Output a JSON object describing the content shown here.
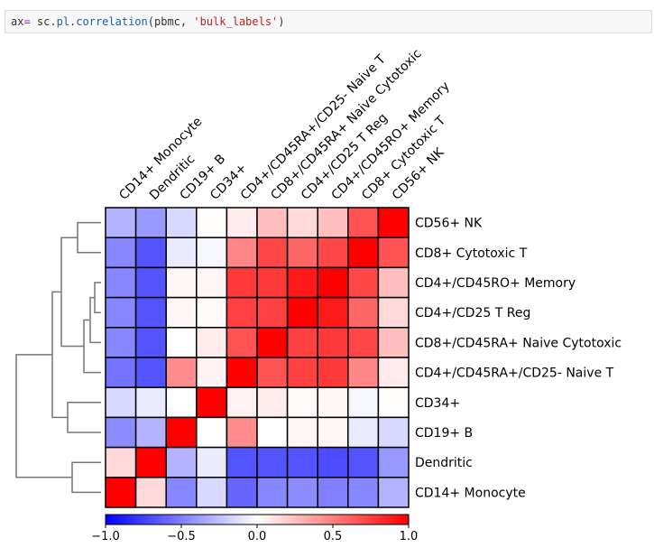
{
  "code_cell": {
    "prefix": "ax",
    "op": "=",
    "module": " sc.",
    "pl": "pl",
    "dot": ".",
    "func": "correlation",
    "args_open": "(pbmc, ",
    "arg_str": "'bulk_labels'",
    "args_close": ")"
  },
  "chart_data": {
    "type": "heatmap",
    "title": "",
    "colormap": "bwr",
    "vmin": -1.0,
    "vmax": 1.0,
    "colorbar_ticks": [
      "−1.0",
      "−0.5",
      "0.0",
      "0.5",
      "1.0"
    ],
    "colorbar_tick_values": [
      -1.0,
      -0.5,
      0.0,
      0.5,
      1.0
    ],
    "columns": [
      "CD14+ Monocyte",
      "Dendritic",
      "CD19+ B",
      "CD34+",
      "CD4+/CD45RA+/CD25- Naive T",
      "CD8+/CD45RA+ Naive Cytotoxic",
      "CD4+/CD25 T Reg",
      "CD4+/CD45RO+ Memory",
      "CD8+ Cytotoxic T",
      "CD56+ NK"
    ],
    "rows": [
      "CD56+ NK",
      "CD8+ Cytotoxic T",
      "CD4+/CD45RO+ Memory",
      "CD4+/CD25 T Reg",
      "CD8+/CD45RA+ Naive Cytotoxic",
      "CD4+/CD45RA+/CD25- Naive T",
      "CD34+",
      "CD19+ B",
      "Dendritic",
      "CD14+ Monocyte"
    ],
    "values": [
      [
        -0.3,
        -0.4,
        -0.15,
        0.01,
        0.08,
        0.25,
        0.15,
        0.25,
        0.68,
        1.0
      ],
      [
        -0.47,
        -0.67,
        -0.08,
        -0.03,
        0.47,
        0.72,
        0.6,
        0.72,
        1.0,
        0.68
      ],
      [
        -0.47,
        -0.67,
        0.03,
        0.03,
        0.78,
        0.78,
        0.9,
        1.0,
        0.72,
        0.25
      ],
      [
        -0.47,
        -0.67,
        0.03,
        0.02,
        0.75,
        0.75,
        1.0,
        0.9,
        0.6,
        0.15
      ],
      [
        -0.47,
        -0.67,
        0.0,
        0.07,
        0.68,
        1.0,
        0.75,
        0.78,
        0.72,
        0.25
      ],
      [
        -0.55,
        -0.67,
        0.45,
        0.05,
        1.0,
        0.68,
        0.75,
        0.78,
        0.47,
        0.08
      ],
      [
        -0.15,
        -0.08,
        0.0,
        1.0,
        0.05,
        0.07,
        0.02,
        0.03,
        -0.03,
        0.01
      ],
      [
        -0.45,
        -0.3,
        1.0,
        0.0,
        0.45,
        0.0,
        0.03,
        0.03,
        -0.08,
        -0.15
      ],
      [
        0.15,
        1.0,
        -0.3,
        -0.08,
        -0.67,
        -0.67,
        -0.67,
        -0.7,
        -0.67,
        -0.4
      ],
      [
        1.0,
        0.15,
        -0.47,
        -0.15,
        -0.6,
        -0.47,
        -0.45,
        -0.5,
        -0.47,
        -0.3
      ]
    ],
    "dendrogram": {
      "side": "left",
      "leaf_order": [
        "CD56+ NK",
        "CD8+ Cytotoxic T",
        "CD4+/CD45RO+ Memory",
        "CD4+/CD25 T Reg",
        "CD8+/CD45RA+ Naive Cytotoxic",
        "CD4+/CD45RA+/CD25- Naive T",
        "CD34+",
        "CD19+ B",
        "Dendritic",
        "CD14+ Monocyte"
      ]
    }
  }
}
